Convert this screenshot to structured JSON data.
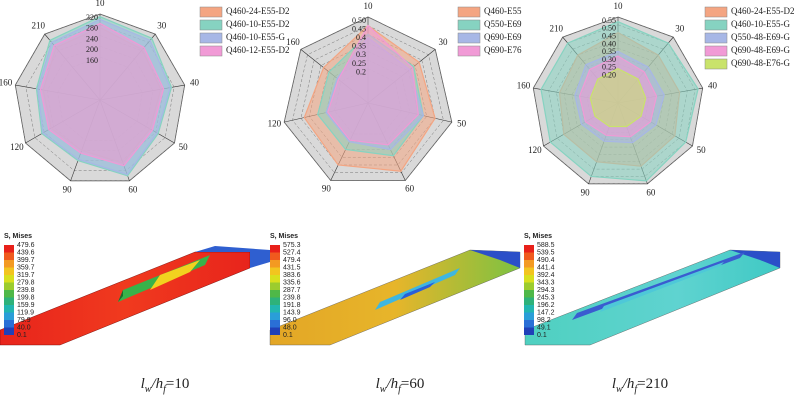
{
  "chart_data": [
    {
      "type": "radar",
      "categories": [
        "10",
        "30",
        "40",
        "50",
        "60",
        "90",
        "120",
        "160",
        "210"
      ],
      "rlim": [
        0,
        320
      ],
      "rticks": [
        160,
        200,
        240,
        280,
        320
      ],
      "series": [
        {
          "name": "Q460-24-E55-D2",
          "color": "#f4a582",
          "values": [
            270,
            245,
            230,
            215,
            250,
            200,
            210,
            215,
            255
          ]
        },
        {
          "name": "Q460-10-E55-D2",
          "color": "#86d3c1",
          "values": [
            310,
            300,
            270,
            250,
            300,
            240,
            250,
            240,
            290
          ]
        },
        {
          "name": "Q460-10-E55-G",
          "color": "#a7b7e6",
          "values": [
            300,
            290,
            265,
            245,
            295,
            235,
            245,
            235,
            280
          ]
        },
        {
          "name": "Q460-12-E55-D2",
          "color": "#f19ad6",
          "values": [
            285,
            255,
            240,
            225,
            260,
            210,
            220,
            225,
            265
          ]
        }
      ]
    },
    {
      "type": "radar",
      "categories": [
        "10",
        "30",
        "50",
        "60",
        "90",
        "120",
        "160"
      ],
      "rlim": [
        0,
        0.5
      ],
      "rticks": [
        0.2,
        0.25,
        0.3,
        0.35,
        0.4,
        0.45,
        {
          "value": 0.5,
          "label": "0.50"
        }
      ],
      "series": [
        {
          "name": "Q460-E55",
          "color": "#f4a582",
          "values": [
            0.45,
            0.38,
            0.4,
            0.44,
            0.4,
            0.38,
            0.33
          ]
        },
        {
          "name": "Q550-E69",
          "color": "#86d3c1",
          "values": [
            0.4,
            0.34,
            0.33,
            0.34,
            0.3,
            0.3,
            0.29
          ]
        },
        {
          "name": "Q690-E69",
          "color": "#a7b7e6",
          "values": [
            0.38,
            0.31,
            0.33,
            0.3,
            0.25,
            0.25,
            0.23
          ]
        },
        {
          "name": "Q690-E76",
          "color": "#f19ad6",
          "values": [
            0.45,
            0.33,
            0.3,
            0.27,
            0.24,
            0.24,
            0.22
          ]
        }
      ]
    },
    {
      "type": "radar",
      "categories": [
        "10",
        "30",
        "40",
        "50",
        "60",
        "90",
        "120",
        "160",
        "210"
      ],
      "rlim": [
        0,
        0.55
      ],
      "rticks": [
        {
          "value": 0.2,
          "label": "0.20"
        },
        0.25,
        {
          "value": 0.3,
          "label": "0.30"
        },
        0.35,
        {
          "value": 0.4,
          "label": "0.40"
        },
        0.45,
        {
          "value": 0.5,
          "label": "0.50"
        },
        0.55
      ],
      "series": [
        {
          "name": "Q460-24-E55-D2",
          "color": "#f4a582",
          "values": [
            0.45,
            0.4,
            0.4,
            0.42,
            0.43,
            0.4,
            0.4,
            0.38,
            0.4
          ]
        },
        {
          "name": "Q460-10-E55-G",
          "color": "#86d3c1",
          "values": [
            0.52,
            0.5,
            0.52,
            0.5,
            0.53,
            0.5,
            0.5,
            0.5,
            0.5
          ]
        },
        {
          "name": "Q550-48-E69-G",
          "color": "#a7b7e6",
          "values": [
            0.33,
            0.3,
            0.3,
            0.28,
            0.27,
            0.26,
            0.27,
            0.28,
            0.32
          ]
        },
        {
          "name": "Q690-48-E69-G",
          "color": "#f19ad6",
          "values": [
            0.3,
            0.26,
            0.25,
            0.24,
            0.23,
            0.22,
            0.24,
            0.25,
            0.28
          ]
        },
        {
          "name": "Q690-48-E76-G",
          "color": "#c9e36b",
          "values": [
            0.22,
            0.2,
            0.18,
            0.17,
            0.16,
            0.16,
            0.17,
            0.18,
            0.2
          ]
        }
      ]
    }
  ],
  "contour_panels": [
    {
      "legend_title": "S, Mises",
      "levels": [
        "479.6",
        "439.6",
        "399.7",
        "359.7",
        "319.7",
        "279.8",
        "239.8",
        "199.8",
        "159.9",
        "119.9",
        "79.9",
        "40.0",
        "0.1"
      ],
      "caption": {
        "l": "l",
        "w": "w",
        "h": "/h",
        "f": "f",
        "ratio": "=10"
      }
    },
    {
      "legend_title": "S, Mises",
      "levels": [
        "575.3",
        "527.4",
        "479.4",
        "431.5",
        "383.6",
        "335.6",
        "287.7",
        "239.8",
        "191.8",
        "143.9",
        "96.0",
        "48.0",
        "0.1"
      ],
      "caption": {
        "l": "l",
        "w": "w",
        "h": "/h",
        "f": "f",
        "ratio": "=60"
      }
    },
    {
      "legend_title": "S, Mises",
      "levels": [
        "588.5",
        "539.5",
        "490.4",
        "441.4",
        "392.4",
        "343.3",
        "294.3",
        "245.3",
        "196.2",
        "147.2",
        "98.2",
        "49.1",
        "0.1"
      ],
      "caption": {
        "l": "l",
        "w": "w",
        "h": "/h",
        "f": "f",
        "ratio": "=210"
      }
    }
  ]
}
